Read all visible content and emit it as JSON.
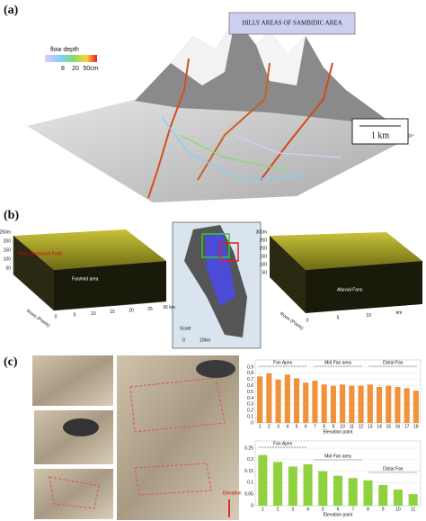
{
  "panel_labels": [
    "(a)",
    "(b)",
    "(c)"
  ],
  "panel_a": {
    "title_box": "HILLY AREAS OF SAMBIDIC AREA",
    "legend_title": "flow depth",
    "legend_ticks": [
      "8",
      "20",
      "50cm"
    ],
    "scale": "1 km"
  },
  "panel_b": {
    "left": {
      "fault": "Gish Transverse Fault",
      "area": "Fan/mid area",
      "axis": "Rows (Pixels)",
      "z_ticks": [
        "250m",
        "200",
        "150",
        "100",
        "50"
      ],
      "x_ticks": [
        "0",
        "5",
        "10",
        "15",
        "20",
        "25",
        "30 km"
      ]
    },
    "map": {
      "scale_title": "Scale",
      "scale_ticks": [
        "0",
        "10km"
      ]
    },
    "right": {
      "fans": "Alluvial Fans",
      "axis": "Rows (Pixels)",
      "z_ticks": [
        "300m",
        "250",
        "200",
        "150",
        "100",
        "50"
      ],
      "x_ticks": [
        "0",
        "5",
        "10",
        "km"
      ]
    }
  },
  "panel_c": {
    "arrow_label": "Elevation"
  },
  "chart_data": [
    {
      "type": "bar",
      "color": "#f0923a",
      "categories": [
        "1",
        "2",
        "3",
        "4",
        "5",
        "6",
        "7",
        "8",
        "9",
        "10",
        "11",
        "12",
        "13",
        "14",
        "15",
        "16",
        "17",
        "18"
      ],
      "values": [
        0.75,
        0.8,
        0.7,
        0.78,
        0.72,
        0.65,
        0.68,
        0.62,
        0.6,
        0.62,
        0.6,
        0.6,
        0.62,
        0.58,
        0.6,
        0.58,
        0.56,
        0.52
      ],
      "ylim": [
        0,
        0.9
      ],
      "yticks": [
        0,
        0.1,
        0.2,
        0.3,
        0.4,
        0.5,
        0.6,
        0.7,
        0.8,
        0.9
      ],
      "grid": true,
      "annotations": [
        "Fan Apex",
        "Mid Fan area",
        "Distal Fan"
      ],
      "x_label": "Elevation point"
    },
    {
      "type": "bar",
      "color": "#8fd13f",
      "categories": [
        "1",
        "2",
        "3",
        "4",
        "5",
        "6",
        "7",
        "8",
        "9",
        "10",
        "11"
      ],
      "values": [
        0.22,
        0.19,
        0.17,
        0.18,
        0.15,
        0.13,
        0.12,
        0.11,
        0.09,
        0.07,
        0.05
      ],
      "ylim": [
        0,
        0.25
      ],
      "yticks": [
        0,
        0.05,
        0.1,
        0.15,
        0.2,
        0.25
      ],
      "grid": true,
      "annotations": [
        "Fan Apex",
        "Mid Fan area",
        "Distal Fan"
      ],
      "x_label": "Elevation point"
    }
  ]
}
